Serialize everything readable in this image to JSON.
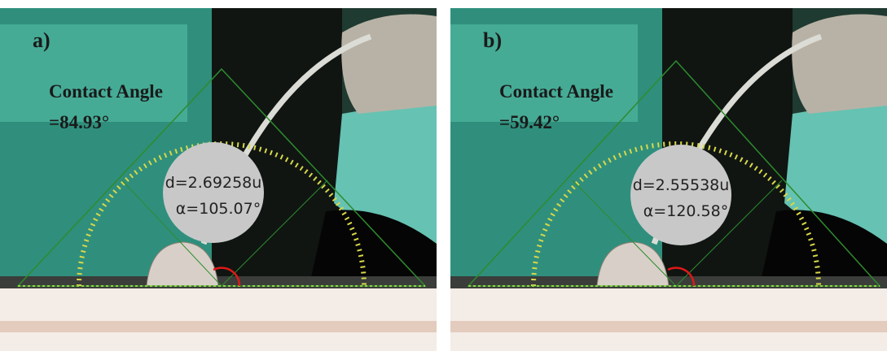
{
  "panels": [
    {
      "label": "a)",
      "title": "Contact Angle",
      "angle": "=84.93°",
      "distance": "d=2.69258u",
      "alpha": "α=105.07°"
    },
    {
      "label": "b)",
      "title": "Contact Angle",
      "angle": "=59.42°",
      "distance": "d=2.55538u",
      "alpha": "α=120.58°"
    }
  ]
}
